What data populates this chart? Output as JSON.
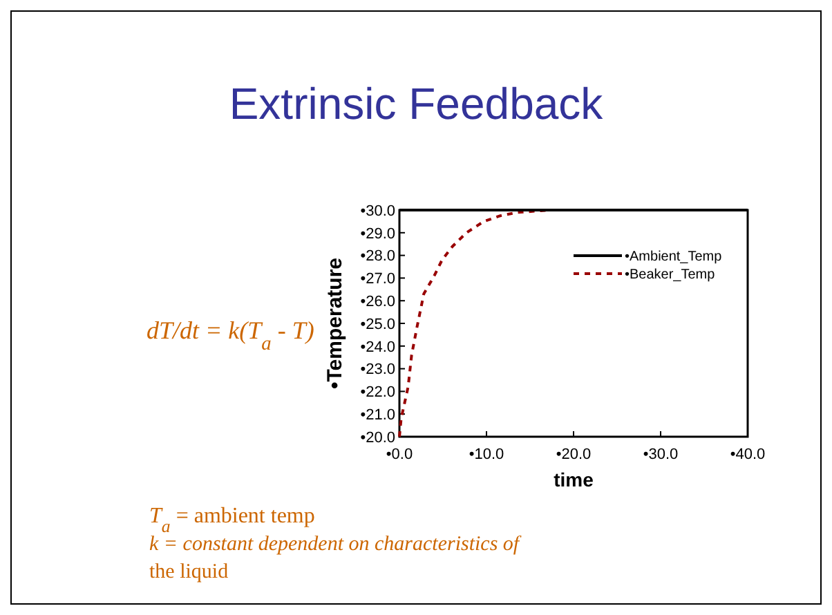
{
  "chart_data": {
    "type": "line",
    "title": "Extrinsic Feedback",
    "xlabel": "time",
    "ylabel": "•Temperature",
    "xlim": [
      0,
      40
    ],
    "xticks": [
      {
        "value": 0,
        "label": "•0.0"
      },
      {
        "value": 10,
        "label": "•10.0"
      },
      {
        "value": 20,
        "label": "•20.0"
      },
      {
        "value": 30,
        "label": "•30.0"
      },
      {
        "value": 40,
        "label": "•40.0"
      }
    ],
    "ylim": [
      20,
      30
    ],
    "yticks": [
      {
        "value": 20,
        "label": "•20.0"
      },
      {
        "value": 21,
        "label": "•21.0"
      },
      {
        "value": 22,
        "label": "•22.0"
      },
      {
        "value": 23,
        "label": "•23.0"
      },
      {
        "value": 24,
        "label": "•24.0"
      },
      {
        "value": 25,
        "label": "•25.0"
      },
      {
        "value": 26,
        "label": "•26.0"
      },
      {
        "value": 27,
        "label": "•27.0"
      },
      {
        "value": 28,
        "label": "•28.0"
      },
      {
        "value": 29,
        "label": "•29.0"
      },
      {
        "value": 30,
        "label": "•30.0"
      }
    ],
    "series": [
      {
        "name": "•Ambient_Temp",
        "color": "#000000",
        "line_style": "solid",
        "x": [
          0,
          40
        ],
        "values": [
          30,
          30
        ]
      },
      {
        "name": "•Beaker_Temp",
        "color": "#990000",
        "line_style": "dashed",
        "x": [
          0,
          0.2,
          1.0,
          1.4,
          2.0,
          2.8,
          4.0,
          4.9,
          6.1,
          7.7,
          9.7,
          11.6,
          13.6,
          17.3
        ],
        "values": [
          20,
          20.8,
          22.2,
          23.6,
          24.8,
          26.3,
          27.1,
          27.8,
          28.4,
          29.0,
          29.5,
          29.75,
          29.9,
          30
        ]
      }
    ],
    "legend": "top right",
    "grid": false,
    "annotations": [
      "dT/dt = k(T$_{a}$ - T)",
      "T$_{a}$ = ambient temp",
      "k = constant dependent on characteristics of",
      "the liquid"
    ]
  }
}
